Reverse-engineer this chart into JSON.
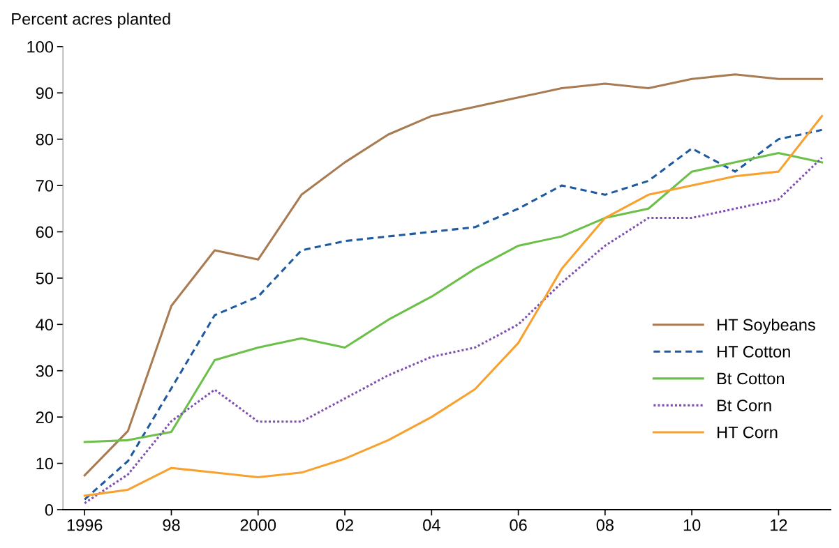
{
  "chart_data": {
    "type": "line",
    "ylabel": "Percent acres planted",
    "x": [
      1996,
      1997,
      1998,
      1999,
      2000,
      2001,
      2002,
      2003,
      2004,
      2005,
      2006,
      2007,
      2008,
      2009,
      2010,
      2011,
      2012,
      2013
    ],
    "series": [
      {
        "name": "HT Soybeans",
        "color": "#a87b52",
        "line_style": "solid",
        "values": [
          7.4,
          17,
          44,
          56,
          54,
          68,
          75,
          81,
          85,
          87,
          89,
          91,
          92,
          91,
          93,
          94,
          93,
          93
        ]
      },
      {
        "name": "HT Cotton",
        "color": "#1f5aa0",
        "line_style": "dashed",
        "values": [
          2.2,
          10.5,
          26.2,
          42,
          46,
          56,
          58,
          59,
          60,
          61,
          65,
          70,
          68,
          71,
          78,
          73,
          80,
          82
        ]
      },
      {
        "name": "Bt Cotton",
        "color": "#6cc04a",
        "line_style": "solid",
        "values": [
          14.6,
          15,
          16.8,
          32.3,
          35,
          37,
          35,
          41,
          46,
          52,
          57,
          59,
          63,
          65,
          73,
          75,
          77,
          75
        ]
      },
      {
        "name": "Bt Corn",
        "color": "#7d4fb0",
        "line_style": "dotted",
        "values": [
          1.4,
          7.6,
          19.1,
          25.9,
          19,
          19,
          24,
          29,
          33,
          35,
          40,
          49,
          57,
          63,
          63,
          65,
          67,
          76
        ]
      },
      {
        "name": "HT Corn",
        "color": "#f7a12f",
        "line_style": "solid",
        "values": [
          3,
          4.3,
          9,
          8,
          7,
          8,
          11,
          15,
          20,
          26,
          36,
          52,
          63,
          68,
          70,
          72,
          73,
          85
        ]
      }
    ],
    "xlim": [
      1995.5,
      2013.2
    ],
    "ylim": [
      0,
      100
    ],
    "xticks": [
      {
        "value": 1996,
        "label": "1996"
      },
      {
        "value": 1998,
        "label": "98"
      },
      {
        "value": 2000,
        "label": "2000"
      },
      {
        "value": 2002,
        "label": "02"
      },
      {
        "value": 2004,
        "label": "04"
      },
      {
        "value": 2006,
        "label": "06"
      },
      {
        "value": 2008,
        "label": "08"
      },
      {
        "value": 2010,
        "label": "10"
      },
      {
        "value": 2012,
        "label": "12"
      }
    ],
    "yticks": [
      0,
      10,
      20,
      30,
      40,
      50,
      60,
      70,
      80,
      90,
      100
    ],
    "grid": false,
    "legend": "right",
    "marker": "none"
  }
}
